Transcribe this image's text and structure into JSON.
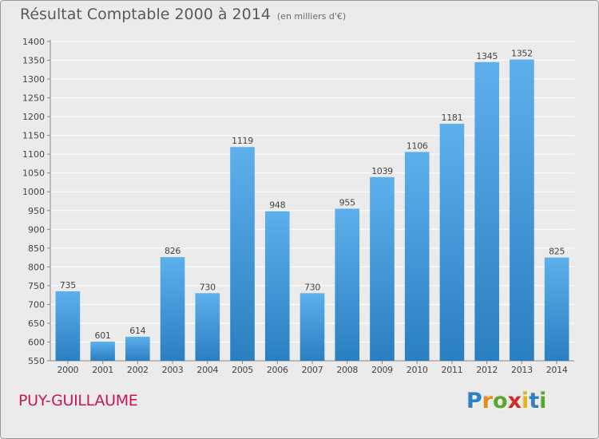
{
  "chart_data": {
    "type": "bar",
    "title": "Résultat Comptable 2000 à 2014",
    "subtitle": "(en milliers d'€)",
    "categories": [
      "2000",
      "2001",
      "2002",
      "2003",
      "2004",
      "2005",
      "2006",
      "2007",
      "2008",
      "2009",
      "2010",
      "2011",
      "2012",
      "2013",
      "2014"
    ],
    "values": [
      735,
      601,
      614,
      826,
      730,
      1119,
      948,
      730,
      955,
      1039,
      1106,
      1181,
      1345,
      1352,
      825
    ],
    "ylim": [
      550,
      1400
    ],
    "yticks": [
      550,
      600,
      650,
      700,
      750,
      800,
      850,
      900,
      950,
      1000,
      1050,
      1100,
      1150,
      1200,
      1250,
      1300,
      1350,
      1400
    ],
    "xlabel": "",
    "ylabel": "",
    "grid": true,
    "legend": "none",
    "colors": {
      "bar_top": "#5eb0ec",
      "bar_bottom": "#2a7fc0",
      "grid": "#ffffff",
      "text": "#444444"
    }
  },
  "footer": {
    "commune": "PUY-GUILLAUME",
    "logo_letters": [
      "P",
      "r",
      "o",
      "x",
      "i",
      "t",
      "i"
    ],
    "logo_colors": [
      "#2f7fc6",
      "#e88a1a",
      "#58a82d",
      "#d22a27",
      "#e6b415",
      "#2f7fc6",
      "#58a82d"
    ]
  }
}
